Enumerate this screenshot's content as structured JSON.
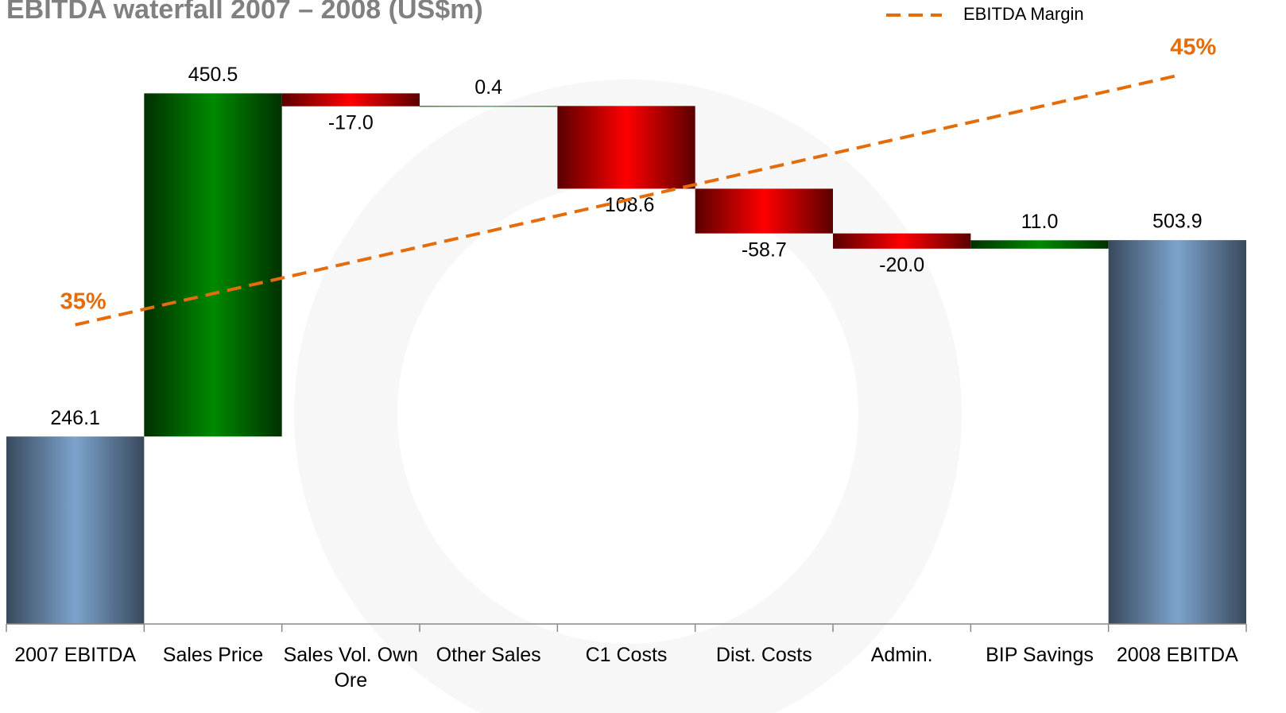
{
  "chart_data": {
    "type": "waterfall",
    "title": "EBITDA waterfall 2007 – 2008 (US$m)",
    "categories": [
      "2007 EBITDA",
      "Sales Price",
      "Sales Vol. Own Ore",
      "Other Sales",
      "C1 Costs",
      "Dist. Costs",
      "Admin.",
      "BIP Savings",
      "2008 EBITDA"
    ],
    "values": [
      246.1,
      450.5,
      -17.0,
      0.4,
      -108.6,
      -58.7,
      -20.0,
      11.0,
      503.9
    ],
    "value_labels": [
      "246.1",
      "450.5",
      "-17.0",
      "0.4",
      "-108.6",
      "-58.7",
      "-20.0",
      "11.0",
      "503.9"
    ],
    "colors": {
      "total": "#7da3cc",
      "increase": "#008a00",
      "decrease": "#ff0000"
    },
    "ylim": [
      0,
      720
    ],
    "margin": {
      "name": "EBITDA Margin",
      "color": "#e46c0a",
      "values": [
        35,
        45
      ],
      "value_labels": [
        "35%",
        "45%"
      ],
      "axis": "y2"
    },
    "y2lim": [
      23,
      45
    ],
    "legend": "top-right"
  }
}
